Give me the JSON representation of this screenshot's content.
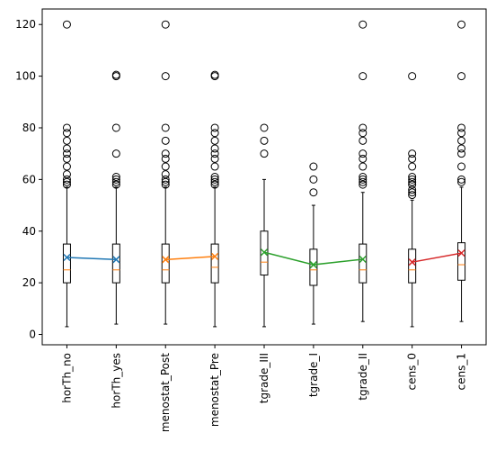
{
  "chart_data": {
    "type": "box",
    "title": "",
    "xlabel": "",
    "ylabel": "",
    "ylim": [
      -4,
      126
    ],
    "yticks": [
      0,
      20,
      40,
      60,
      80,
      100,
      120
    ],
    "ytick_labels": [
      "0",
      "20",
      "40",
      "60",
      "80",
      "100",
      "120"
    ],
    "categories": [
      "horTh_no",
      "horTh_yes",
      "menostat_Post",
      "menostat_Pre",
      "tgrade_III",
      "tgrade_I",
      "tgrade_II",
      "cens_0",
      "cens_1"
    ],
    "boxes": [
      {
        "category": "horTh_no",
        "whisker_low": 3,
        "q1": 20,
        "median": 25,
        "q3": 35,
        "whisker_high": 57,
        "mean": 29.8,
        "outliers": [
          58,
          59,
          60,
          62,
          65,
          68,
          70,
          72,
          75,
          78,
          80,
          120
        ]
      },
      {
        "category": "horTh_yes",
        "whisker_low": 4,
        "q1": 20,
        "median": 25,
        "q3": 35,
        "whisker_high": 57,
        "mean": 29.0,
        "outliers": [
          58,
          59,
          60,
          61,
          70,
          80,
          100,
          100.5
        ]
      },
      {
        "category": "menostat_Post",
        "whisker_low": 4,
        "q1": 20,
        "median": 25,
        "q3": 35,
        "whisker_high": 57,
        "mean": 29.0,
        "outliers": [
          58,
          59,
          60,
          62,
          65,
          68,
          70,
          75,
          80,
          100,
          120
        ]
      },
      {
        "category": "menostat_Pre",
        "whisker_low": 3,
        "q1": 20,
        "median": 26,
        "q3": 35,
        "whisker_high": 57,
        "mean": 30.2,
        "outliers": [
          58,
          59,
          60,
          61,
          65,
          68,
          70,
          72,
          75,
          78,
          80,
          100,
          100.5
        ]
      },
      {
        "category": "tgrade_III",
        "whisker_low": 3,
        "q1": 23,
        "median": 28,
        "q3": 40,
        "whisker_high": 60,
        "mean": 31.8,
        "outliers": [
          70,
          75,
          80
        ]
      },
      {
        "category": "tgrade_I",
        "whisker_low": 4,
        "q1": 19,
        "median": 25,
        "q3": 33,
        "whisker_high": 50,
        "mean": 27.0,
        "outliers": [
          55,
          60,
          65
        ]
      },
      {
        "category": "tgrade_II",
        "whisker_low": 5,
        "q1": 20,
        "median": 25,
        "q3": 35,
        "whisker_high": 55,
        "mean": 29.1,
        "outliers": [
          58,
          59,
          60,
          61,
          65,
          68,
          70,
          75,
          78,
          80,
          100,
          120
        ]
      },
      {
        "category": "cens_0",
        "whisker_low": 3,
        "q1": 20,
        "median": 25,
        "q3": 33,
        "whisker_high": 52,
        "mean": 28.0,
        "outliers": [
          54,
          55,
          56,
          58,
          59,
          60,
          61,
          65,
          68,
          70,
          100
        ]
      },
      {
        "category": "cens_1",
        "whisker_low": 5,
        "q1": 21,
        "median": 27,
        "q3": 35.5,
        "whisker_high": 57,
        "mean": 31.5,
        "outliers": [
          59,
          60,
          65,
          70,
          72,
          75,
          78,
          80,
          100,
          120
        ]
      }
    ],
    "mean_lines": [
      {
        "categories": [
          "horTh_no",
          "horTh_yes"
        ],
        "color": "#1f77b4"
      },
      {
        "categories": [
          "menostat_Post",
          "menostat_Pre"
        ],
        "color": "#ff7f0e"
      },
      {
        "categories": [
          "tgrade_III",
          "tgrade_I",
          "tgrade_II"
        ],
        "color": "#2ca02c"
      },
      {
        "categories": [
          "cens_0",
          "cens_1"
        ],
        "color": "#d62728"
      }
    ],
    "median_color": "#ff7f0e",
    "grid": false,
    "legend": "none"
  }
}
